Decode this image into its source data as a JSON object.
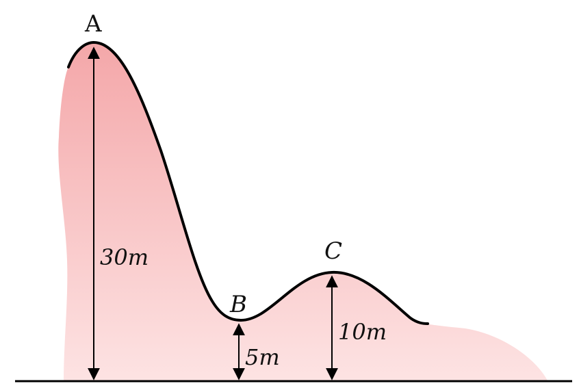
{
  "points": {
    "a": {
      "label": "A"
    },
    "b": {
      "label": "B"
    },
    "c": {
      "label": "C"
    }
  },
  "heights": {
    "a": {
      "label": "30m",
      "value": 30
    },
    "b": {
      "label": "5m",
      "value": 5
    },
    "c": {
      "label": "10m",
      "value": 10
    }
  },
  "colors": {
    "fill_top": "#f4a7a9",
    "fill_bottom": "#fde3e3",
    "track": "#000000",
    "ground": "#000000",
    "arrow": "#000000"
  }
}
